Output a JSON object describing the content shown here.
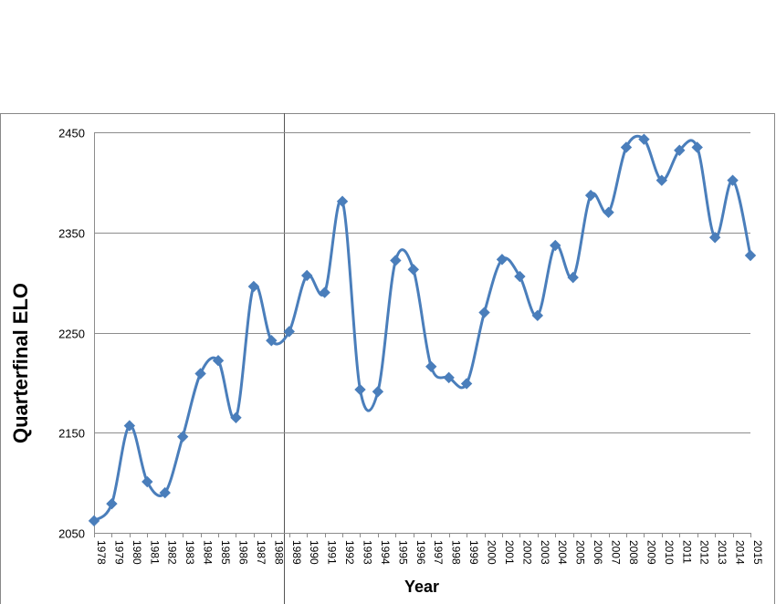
{
  "chart_data": {
    "type": "line",
    "xlabel": "Year",
    "ylabel": "Quarterfinal  ELO",
    "ylim": [
      2050,
      2450
    ],
    "yticks": [
      2050,
      2150,
      2250,
      2350,
      2450
    ],
    "grid": "horizontal",
    "legend": "none",
    "line_style": "smoothed",
    "marker": "diamond",
    "color": "#4a7ebb",
    "categories": [
      "1978",
      "1979",
      "1980",
      "1981",
      "1982",
      "1983",
      "1984",
      "1985",
      "1986",
      "1987",
      "1988",
      "1989",
      "1990",
      "1991",
      "1992",
      "1993",
      "1994",
      "1995",
      "1996",
      "1997",
      "1998",
      "1999",
      "2000",
      "2001",
      "2002",
      "2003",
      "2004",
      "2005",
      "2006",
      "2007",
      "2008",
      "2009",
      "2010",
      "2011",
      "2012",
      "2013",
      "2014",
      "2015"
    ],
    "series": [
      {
        "values": [
          2062,
          2079,
          2157,
          2101,
          2090,
          2146,
          2209,
          2222,
          2165,
          2296,
          2242,
          2251,
          2307,
          2290,
          2381,
          2193,
          2191,
          2322,
          2313,
          2216,
          2205,
          2199,
          2270,
          2323,
          2306,
          2267,
          2337,
          2305,
          2387,
          2370,
          2435,
          2443,
          2402,
          2432,
          2435,
          2345,
          2402,
          2327
        ]
      }
    ]
  }
}
